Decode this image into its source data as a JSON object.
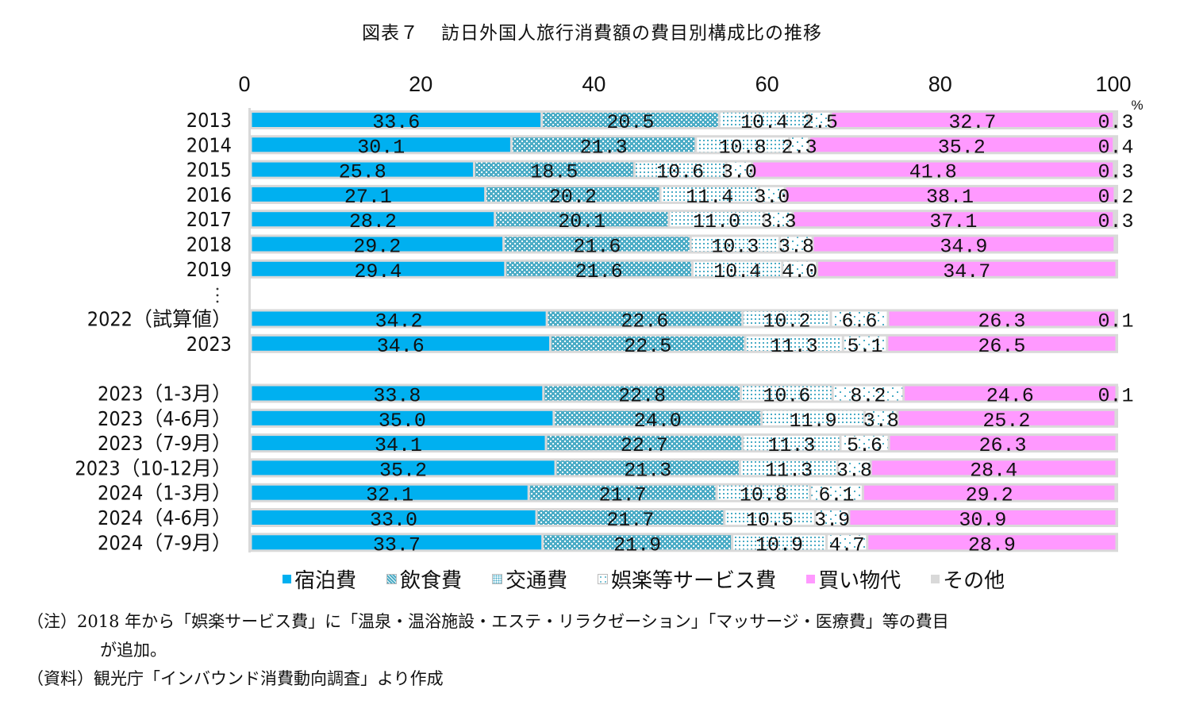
{
  "title": {
    "figure_no": "図表７",
    "text": "訪日外国人旅行消費額の費目別構成比の推移"
  },
  "chart_data": {
    "type": "bar",
    "orientation": "horizontal",
    "stacked": true,
    "title": "訪日外国人旅行消費額の費目別構成比の推移",
    "xlabel": "",
    "unit_label": "%",
    "xlim": [
      0,
      100
    ],
    "xticks": [
      0,
      20,
      40,
      60,
      80,
      100
    ],
    "grid": false,
    "legend_position": "bottom",
    "categories": [
      "2013",
      "2014",
      "2015",
      "2016",
      "2017",
      "2018",
      "2019",
      "2022（試算値）",
      "2023",
      "2023（1-3月）",
      "2023（4-6月）",
      "2023（7-9月）",
      "2023（10-12月）",
      "2024（1-3月）",
      "2024（4-6月）",
      "2024（7-9月）"
    ],
    "gap_marker": "：",
    "series": [
      {
        "name": "宿泊費",
        "color": "#00b0f0",
        "pattern": "solid",
        "values": [
          33.6,
          30.1,
          25.8,
          27.1,
          28.2,
          29.2,
          29.4,
          34.2,
          34.6,
          33.8,
          35.0,
          34.1,
          35.2,
          32.1,
          33.0,
          33.7
        ]
      },
      {
        "name": "飲食費",
        "color": "#4bacc6",
        "pattern": "dense-dots",
        "values": [
          20.5,
          21.3,
          18.5,
          20.2,
          20.1,
          21.6,
          21.6,
          22.6,
          22.5,
          22.8,
          24.0,
          22.7,
          21.3,
          21.7,
          21.7,
          21.9
        ]
      },
      {
        "name": "交通費",
        "color": "#4bacc6",
        "pattern": "grid-dots",
        "values": [
          10.4,
          10.8,
          10.6,
          11.4,
          11.0,
          10.3,
          10.4,
          10.2,
          11.3,
          10.6,
          11.9,
          11.3,
          11.3,
          10.8,
          10.5,
          10.9
        ]
      },
      {
        "name": "娯楽等サービス費",
        "color": "#4bacc6",
        "pattern": "sparse-dots",
        "values": [
          2.5,
          2.3,
          3.0,
          3.0,
          3.3,
          3.8,
          4.0,
          6.6,
          5.1,
          8.2,
          3.8,
          5.6,
          3.8,
          6.1,
          3.9,
          4.7
        ]
      },
      {
        "name": "買い物代",
        "color": "#ff99ff",
        "pattern": "solid",
        "values": [
          32.7,
          35.2,
          41.8,
          38.1,
          37.1,
          34.9,
          34.7,
          26.3,
          26.5,
          24.6,
          25.2,
          26.3,
          28.4,
          29.2,
          30.9,
          28.9
        ]
      },
      {
        "name": "その他",
        "color": "#d9d9d9",
        "pattern": "solid",
        "values": [
          0.3,
          0.4,
          0.3,
          0.2,
          0.3,
          null,
          null,
          0.1,
          null,
          0.1,
          null,
          null,
          null,
          null,
          null,
          null
        ]
      }
    ]
  },
  "notes": {
    "note_label": "（注）",
    "note_line1": "2018 年から「娯楽サービス費」に「温泉・温浴施設・エステ・リラクゼーション」「マッサージ・医療費」等の費目",
    "note_line2": "が追加。",
    "source_label": "（資料）",
    "source_text": "観光庁「インバウンド消費動向調査」より作成"
  }
}
